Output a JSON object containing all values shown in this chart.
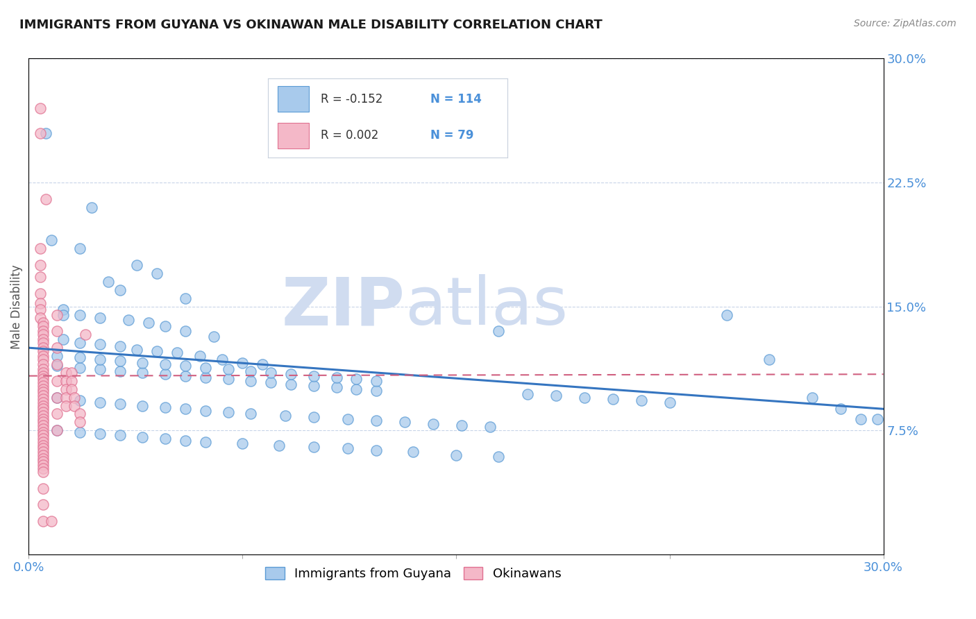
{
  "title": "IMMIGRANTS FROM GUYANA VS OKINAWAN MALE DISABILITY CORRELATION CHART",
  "source": "Source: ZipAtlas.com",
  "ylabel": "Male Disability",
  "xlim": [
    0.0,
    0.3
  ],
  "ylim": [
    0.0,
    0.3
  ],
  "yticks_right": [
    0.075,
    0.15,
    0.225,
    0.3
  ],
  "yticks_right_labels": [
    "7.5%",
    "15.0%",
    "22.5%",
    "30.0%"
  ],
  "series1_label": "Immigrants from Guyana",
  "series1_color": "#A8CAEC",
  "series1_edge": "#5B9BD5",
  "series1_R": "-0.152",
  "series1_N": "114",
  "series2_label": "Okinawans",
  "series2_color": "#F4B8C8",
  "series2_edge": "#E07090",
  "series2_R": "0.002",
  "series2_N": "79",
  "trend1_color": "#3575C0",
  "trend2_color": "#D06080",
  "watermark_text": "ZIPatlas",
  "watermark_color": "#D0DCF0",
  "background_color": "#FFFFFF",
  "grid_color": "#C8D4E8",
  "title_color": "#1A1A1A",
  "tick_color": "#4A90D9",
  "legend_border": "#C8D0DC",
  "blue_points": [
    [
      0.006,
      0.255
    ],
    [
      0.022,
      0.21
    ],
    [
      0.008,
      0.19
    ],
    [
      0.018,
      0.185
    ],
    [
      0.038,
      0.175
    ],
    [
      0.045,
      0.17
    ],
    [
      0.028,
      0.165
    ],
    [
      0.032,
      0.16
    ],
    [
      0.055,
      0.155
    ],
    [
      0.012,
      0.148
    ],
    [
      0.018,
      0.145
    ],
    [
      0.025,
      0.143
    ],
    [
      0.035,
      0.142
    ],
    [
      0.042,
      0.14
    ],
    [
      0.048,
      0.138
    ],
    [
      0.055,
      0.135
    ],
    [
      0.065,
      0.132
    ],
    [
      0.012,
      0.13
    ],
    [
      0.018,
      0.128
    ],
    [
      0.025,
      0.127
    ],
    [
      0.032,
      0.126
    ],
    [
      0.038,
      0.124
    ],
    [
      0.045,
      0.123
    ],
    [
      0.052,
      0.122
    ],
    [
      0.06,
      0.12
    ],
    [
      0.068,
      0.118
    ],
    [
      0.075,
      0.116
    ],
    [
      0.082,
      0.115
    ],
    [
      0.01,
      0.114
    ],
    [
      0.018,
      0.113
    ],
    [
      0.025,
      0.112
    ],
    [
      0.032,
      0.111
    ],
    [
      0.04,
      0.11
    ],
    [
      0.048,
      0.109
    ],
    [
      0.055,
      0.108
    ],
    [
      0.062,
      0.107
    ],
    [
      0.07,
      0.106
    ],
    [
      0.078,
      0.105
    ],
    [
      0.085,
      0.104
    ],
    [
      0.092,
      0.103
    ],
    [
      0.1,
      0.102
    ],
    [
      0.108,
      0.101
    ],
    [
      0.115,
      0.1
    ],
    [
      0.122,
      0.099
    ],
    [
      0.01,
      0.12
    ],
    [
      0.018,
      0.119
    ],
    [
      0.025,
      0.118
    ],
    [
      0.032,
      0.117
    ],
    [
      0.04,
      0.116
    ],
    [
      0.048,
      0.115
    ],
    [
      0.055,
      0.114
    ],
    [
      0.062,
      0.113
    ],
    [
      0.07,
      0.112
    ],
    [
      0.078,
      0.111
    ],
    [
      0.085,
      0.11
    ],
    [
      0.092,
      0.109
    ],
    [
      0.1,
      0.108
    ],
    [
      0.108,
      0.107
    ],
    [
      0.115,
      0.106
    ],
    [
      0.122,
      0.105
    ],
    [
      0.01,
      0.095
    ],
    [
      0.018,
      0.093
    ],
    [
      0.025,
      0.092
    ],
    [
      0.032,
      0.091
    ],
    [
      0.04,
      0.09
    ],
    [
      0.048,
      0.089
    ],
    [
      0.055,
      0.088
    ],
    [
      0.062,
      0.087
    ],
    [
      0.07,
      0.086
    ],
    [
      0.078,
      0.085
    ],
    [
      0.09,
      0.084
    ],
    [
      0.1,
      0.083
    ],
    [
      0.112,
      0.082
    ],
    [
      0.122,
      0.081
    ],
    [
      0.132,
      0.08
    ],
    [
      0.142,
      0.079
    ],
    [
      0.152,
      0.078
    ],
    [
      0.162,
      0.077
    ],
    [
      0.175,
      0.097
    ],
    [
      0.185,
      0.096
    ],
    [
      0.195,
      0.095
    ],
    [
      0.205,
      0.094
    ],
    [
      0.215,
      0.093
    ],
    [
      0.225,
      0.092
    ],
    [
      0.01,
      0.075
    ],
    [
      0.018,
      0.074
    ],
    [
      0.025,
      0.073
    ],
    [
      0.032,
      0.072
    ],
    [
      0.04,
      0.071
    ],
    [
      0.048,
      0.07
    ],
    [
      0.055,
      0.069
    ],
    [
      0.062,
      0.068
    ],
    [
      0.075,
      0.067
    ],
    [
      0.088,
      0.066
    ],
    [
      0.1,
      0.065
    ],
    [
      0.112,
      0.064
    ],
    [
      0.122,
      0.063
    ],
    [
      0.135,
      0.062
    ],
    [
      0.15,
      0.06
    ],
    [
      0.165,
      0.059
    ],
    [
      0.012,
      0.145
    ],
    [
      0.165,
      0.135
    ],
    [
      0.245,
      0.145
    ],
    [
      0.26,
      0.118
    ],
    [
      0.275,
      0.095
    ],
    [
      0.285,
      0.088
    ],
    [
      0.292,
      0.082
    ],
    [
      0.298,
      0.082
    ]
  ],
  "pink_points": [
    [
      0.004,
      0.27
    ],
    [
      0.004,
      0.255
    ],
    [
      0.006,
      0.215
    ],
    [
      0.004,
      0.185
    ],
    [
      0.004,
      0.175
    ],
    [
      0.004,
      0.168
    ],
    [
      0.004,
      0.158
    ],
    [
      0.004,
      0.152
    ],
    [
      0.004,
      0.148
    ],
    [
      0.004,
      0.143
    ],
    [
      0.005,
      0.14
    ],
    [
      0.005,
      0.138
    ],
    [
      0.005,
      0.135
    ],
    [
      0.005,
      0.133
    ],
    [
      0.005,
      0.13
    ],
    [
      0.005,
      0.128
    ],
    [
      0.005,
      0.125
    ],
    [
      0.005,
      0.123
    ],
    [
      0.005,
      0.12
    ],
    [
      0.005,
      0.118
    ],
    [
      0.005,
      0.115
    ],
    [
      0.005,
      0.112
    ],
    [
      0.005,
      0.11
    ],
    [
      0.005,
      0.108
    ],
    [
      0.005,
      0.106
    ],
    [
      0.005,
      0.104
    ],
    [
      0.005,
      0.102
    ],
    [
      0.005,
      0.1
    ],
    [
      0.005,
      0.098
    ],
    [
      0.005,
      0.096
    ],
    [
      0.005,
      0.094
    ],
    [
      0.005,
      0.092
    ],
    [
      0.005,
      0.09
    ],
    [
      0.005,
      0.088
    ],
    [
      0.005,
      0.086
    ],
    [
      0.005,
      0.084
    ],
    [
      0.005,
      0.082
    ],
    [
      0.005,
      0.08
    ],
    [
      0.005,
      0.078
    ],
    [
      0.005,
      0.076
    ],
    [
      0.005,
      0.074
    ],
    [
      0.005,
      0.072
    ],
    [
      0.005,
      0.07
    ],
    [
      0.005,
      0.068
    ],
    [
      0.005,
      0.066
    ],
    [
      0.005,
      0.064
    ],
    [
      0.005,
      0.062
    ],
    [
      0.005,
      0.06
    ],
    [
      0.005,
      0.058
    ],
    [
      0.005,
      0.056
    ],
    [
      0.005,
      0.054
    ],
    [
      0.005,
      0.052
    ],
    [
      0.005,
      0.05
    ],
    [
      0.005,
      0.04
    ],
    [
      0.005,
      0.03
    ],
    [
      0.005,
      0.02
    ],
    [
      0.01,
      0.145
    ],
    [
      0.01,
      0.135
    ],
    [
      0.01,
      0.125
    ],
    [
      0.01,
      0.115
    ],
    [
      0.01,
      0.105
    ],
    [
      0.01,
      0.095
    ],
    [
      0.01,
      0.085
    ],
    [
      0.01,
      0.075
    ],
    [
      0.013,
      0.11
    ],
    [
      0.013,
      0.105
    ],
    [
      0.013,
      0.1
    ],
    [
      0.013,
      0.095
    ],
    [
      0.013,
      0.09
    ],
    [
      0.015,
      0.11
    ],
    [
      0.015,
      0.105
    ],
    [
      0.015,
      0.1
    ],
    [
      0.016,
      0.095
    ],
    [
      0.016,
      0.09
    ],
    [
      0.018,
      0.085
    ],
    [
      0.018,
      0.08
    ],
    [
      0.02,
      0.133
    ],
    [
      0.008,
      0.02
    ]
  ],
  "trend1_x": [
    0.0,
    0.3
  ],
  "trend1_y": [
    0.125,
    0.088
  ],
  "trend2_x": [
    0.0,
    0.3
  ],
  "trend2_y": [
    0.108,
    0.109
  ]
}
